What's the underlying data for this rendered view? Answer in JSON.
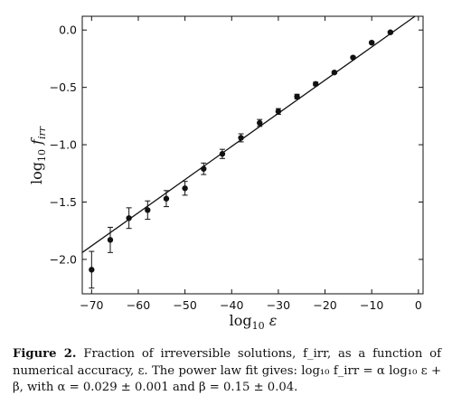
{
  "chart_data": {
    "type": "scatter",
    "xlabel": "log₁₀ ε",
    "ylabel": "log₁₀ f_irr",
    "xlim": [
      -72,
      1
    ],
    "ylim": [
      -2.3,
      0.12
    ],
    "xticks": [
      -70,
      -60,
      -50,
      -40,
      -30,
      -20,
      -10,
      0
    ],
    "yticks": [
      0.0,
      -0.5,
      -1.0,
      -1.5,
      -2.0
    ],
    "xtick_labels": [
      "−70",
      "−60",
      "−50",
      "−40",
      "−30",
      "−20",
      "−10",
      "0"
    ],
    "ytick_labels": [
      "0.0",
      "−0.5",
      "−1.0",
      "−1.5",
      "−2.0"
    ],
    "grid": false,
    "series": [
      {
        "points": [
          {
            "x": -70,
            "y": -2.09,
            "err": 0.16
          },
          {
            "x": -66,
            "y": -1.83,
            "err": 0.11
          },
          {
            "x": -62,
            "y": -1.64,
            "err": 0.09
          },
          {
            "x": -58,
            "y": -1.57,
            "err": 0.08
          },
          {
            "x": -54,
            "y": -1.47,
            "err": 0.07
          },
          {
            "x": -50,
            "y": -1.38,
            "err": 0.06
          },
          {
            "x": -46,
            "y": -1.21,
            "err": 0.05
          },
          {
            "x": -42,
            "y": -1.08,
            "err": 0.04
          },
          {
            "x": -38,
            "y": -0.94,
            "err": 0.035
          },
          {
            "x": -34,
            "y": -0.81,
            "err": 0.03
          },
          {
            "x": -30,
            "y": -0.71,
            "err": 0.025
          },
          {
            "x": -26,
            "y": -0.58,
            "err": 0.02
          },
          {
            "x": -22,
            "y": -0.47,
            "err": 0.015
          },
          {
            "x": -18,
            "y": -0.37,
            "err": 0.01
          },
          {
            "x": -14,
            "y": -0.24,
            "err": 0.01
          },
          {
            "x": -10,
            "y": -0.11,
            "err": 0.01
          },
          {
            "x": -6,
            "y": -0.02,
            "err": 0.01
          }
        ]
      }
    ],
    "fit_line": {
      "x": [
        -72,
        1
      ],
      "y": [
        -1.94,
        0.17
      ]
    }
  },
  "caption": {
    "label": "Figure 2.",
    "text": "Fraction of irreversible solutions, f_irr, as a function of numerical accuracy, ε. The power law fit gives: log₁₀ f_irr = α log₁₀ ε + β, with α = 0.029 ± 0.001 and β = 0.15 ± 0.04."
  }
}
